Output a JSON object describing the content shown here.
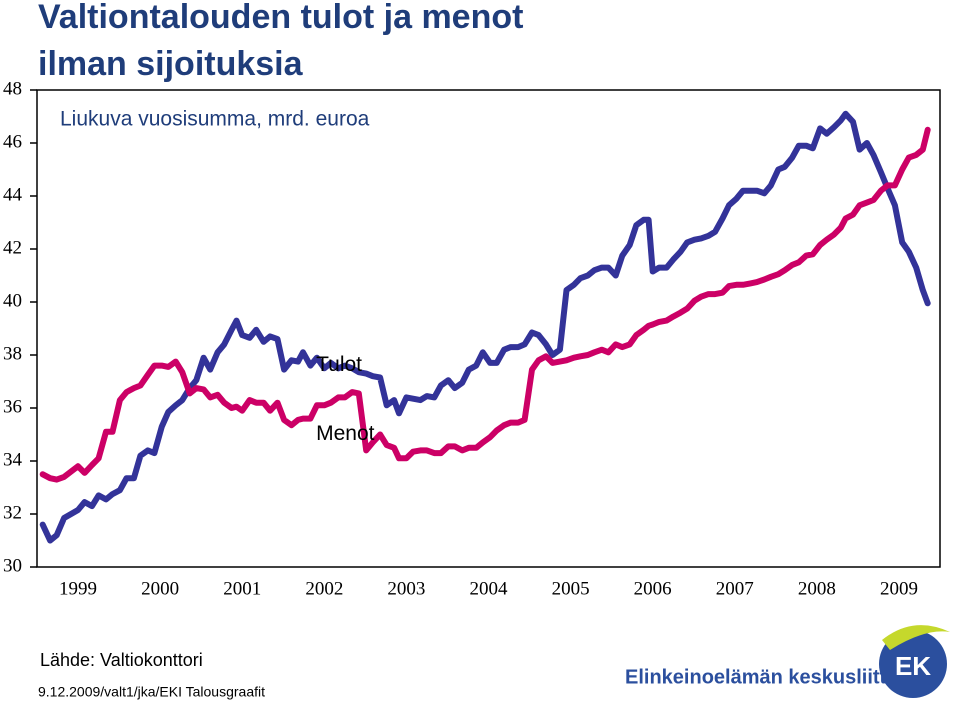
{
  "chart_data": {
    "type": "line",
    "title": [
      "Valtiontalouden tulot ja menot",
      "ilman sijoituksia"
    ],
    "subtitle": "Liukuva vuosisumma, mrd. euroa",
    "annotations": [
      {
        "text": "Tulot",
        "x": 2002.4,
        "y": 37.6
      },
      {
        "text": "Menot",
        "x": 2002.4,
        "y": 35.0
      }
    ],
    "x": [
      1999.07,
      1999.16,
      1999.24,
      1999.33,
      1999.5,
      1999.58,
      1999.67,
      1999.75,
      1999.84,
      1999.92,
      2000.01,
      2000.09,
      2000.18,
      2000.26,
      2000.35,
      2000.43,
      2000.52,
      2000.6,
      2000.69,
      2000.77,
      2000.86,
      2000.94,
      2001.03,
      2001.11,
      2001.2,
      2001.28,
      2001.37,
      2001.43,
      2001.5,
      2001.59,
      2001.67,
      2001.76,
      2001.84,
      2001.93,
      2002.01,
      2002.1,
      2002.18,
      2002.24,
      2002.33,
      2002.41,
      2002.5,
      2002.58,
      2002.67,
      2002.75,
      2002.84,
      2002.92,
      2003.01,
      2003.09,
      2003.18,
      2003.26,
      2003.35,
      2003.41,
      2003.5,
      2003.58,
      2003.67,
      2003.75,
      2003.84,
      2003.92,
      2004.01,
      2004.09,
      2004.18,
      2004.26,
      2004.35,
      2004.43,
      2004.52,
      2004.6,
      2004.69,
      2004.77,
      2004.86,
      2004.94,
      2005.03,
      2005.11,
      2005.2,
      2005.28,
      2005.37,
      2005.45,
      2005.54,
      2005.62,
      2005.71,
      2005.79,
      2005.88,
      2005.96,
      2006.05,
      2006.13,
      2006.22,
      2006.3,
      2006.39,
      2006.45,
      2006.5,
      2006.58,
      2006.67,
      2006.75,
      2006.84,
      2006.92,
      2007.01,
      2007.09,
      2007.18,
      2007.26,
      2007.35,
      2007.43,
      2007.52,
      2007.6,
      2007.69,
      2007.77,
      2007.86,
      2007.94,
      2008.03,
      2008.11,
      2008.2,
      2008.28,
      2008.37,
      2008.45,
      2008.54,
      2008.62,
      2008.71,
      2008.79,
      2008.85,
      2008.94,
      2009.02,
      2009.11,
      2009.19,
      2009.28,
      2009.36,
      2009.45,
      2009.54,
      2009.62,
      2009.71,
      2009.79,
      2009.85
    ],
    "series": [
      {
        "name": "Tulot",
        "color": "#333399",
        "values": [
          31.6,
          31.0,
          31.2,
          31.85,
          32.15,
          32.45,
          32.3,
          32.7,
          32.55,
          32.75,
          32.9,
          33.35,
          33.35,
          34.2,
          34.4,
          34.3,
          35.3,
          35.85,
          36.1,
          36.3,
          36.75,
          37.05,
          37.9,
          37.45,
          38.1,
          38.4,
          38.95,
          39.3,
          38.75,
          38.65,
          38.95,
          38.5,
          38.7,
          38.6,
          37.45,
          37.8,
          37.75,
          38.1,
          37.6,
          37.9,
          37.5,
          37.7,
          37.5,
          37.6,
          37.5,
          37.35,
          37.3,
          37.2,
          37.15,
          36.1,
          36.3,
          35.8,
          36.4,
          36.35,
          36.3,
          36.45,
          36.4,
          36.85,
          37.05,
          36.75,
          36.95,
          37.45,
          37.6,
          38.1,
          37.7,
          37.7,
          38.2,
          38.3,
          38.3,
          38.4,
          38.85,
          38.75,
          38.4,
          38.0,
          38.2,
          40.45,
          40.65,
          40.9,
          41.0,
          41.2,
          41.3,
          41.3,
          41.0,
          41.75,
          42.15,
          42.9,
          43.1,
          43.1,
          41.15,
          41.3,
          41.3,
          41.6,
          41.9,
          42.25,
          42.35,
          42.4,
          42.5,
          42.65,
          43.15,
          43.65,
          43.9,
          44.2,
          44.2,
          44.2,
          44.1,
          44.4,
          45.0,
          45.1,
          45.45,
          45.9,
          45.9,
          45.8,
          46.55,
          46.35,
          46.6,
          46.85,
          47.1,
          46.8,
          45.75,
          46.0,
          45.55,
          44.9,
          44.3,
          43.65,
          42.25,
          41.9,
          41.3,
          40.45,
          39.95
        ]
      },
      {
        "name": "Menot",
        "color": "#cc0066",
        "values": [
          33.5,
          33.35,
          33.3,
          33.4,
          33.8,
          33.55,
          33.85,
          34.1,
          35.1,
          35.1,
          36.3,
          36.6,
          36.75,
          36.85,
          37.25,
          37.6,
          37.6,
          37.55,
          37.75,
          37.35,
          36.55,
          36.75,
          36.7,
          36.4,
          36.5,
          36.2,
          36.0,
          36.05,
          35.9,
          36.3,
          36.2,
          36.2,
          35.9,
          36.2,
          35.55,
          35.35,
          35.55,
          35.6,
          35.6,
          36.1,
          36.1,
          36.2,
          36.4,
          36.4,
          36.6,
          36.55,
          34.4,
          34.7,
          35.0,
          34.6,
          34.5,
          34.1,
          34.1,
          34.35,
          34.4,
          34.4,
          34.3,
          34.3,
          34.55,
          34.55,
          34.4,
          34.5,
          34.5,
          34.7,
          34.9,
          35.15,
          35.35,
          35.45,
          35.45,
          35.55,
          37.45,
          37.8,
          37.95,
          37.7,
          37.75,
          37.8,
          37.9,
          37.95,
          38.0,
          38.1,
          38.2,
          38.1,
          38.4,
          38.3,
          38.4,
          38.75,
          38.95,
          39.1,
          39.15,
          39.25,
          39.3,
          39.45,
          39.6,
          39.75,
          40.05,
          40.2,
          40.3,
          40.3,
          40.35,
          40.6,
          40.65,
          40.65,
          40.7,
          40.75,
          40.85,
          40.95,
          41.05,
          41.2,
          41.4,
          41.5,
          41.75,
          41.8,
          42.15,
          42.35,
          42.55,
          42.8,
          43.15,
          43.3,
          43.65,
          43.75,
          43.85,
          44.2,
          44.4,
          44.4,
          45.0,
          45.45,
          45.55,
          45.75,
          46.5
        ]
      }
    ],
    "xlim": [
      1999,
      2010
    ],
    "xticks": [
      {
        "value": 1999.5,
        "label": "1999"
      },
      {
        "value": 2000.5,
        "label": "2000"
      },
      {
        "value": 2001.5,
        "label": "2001"
      },
      {
        "value": 2002.5,
        "label": "2002"
      },
      {
        "value": 2003.5,
        "label": "2003"
      },
      {
        "value": 2004.5,
        "label": "2004"
      },
      {
        "value": 2005.5,
        "label": "2005"
      },
      {
        "value": 2006.5,
        "label": "2006"
      },
      {
        "value": 2007.5,
        "label": "2007"
      },
      {
        "value": 2008.5,
        "label": "2008"
      },
      {
        "value": 2009.5,
        "label": "2009"
      }
    ],
    "ylim": [
      30,
      48
    ],
    "yticks": [
      30,
      32,
      34,
      36,
      38,
      40,
      42,
      44,
      46,
      48
    ],
    "grid": false
  },
  "footer": {
    "source": "Lähde: Valtiokonttori",
    "note": "9.12.2009/valt1/jka/EKI Talousgraafit",
    "organization": "Elinkeinoelämän keskusliitto",
    "logo_text": "EK"
  }
}
